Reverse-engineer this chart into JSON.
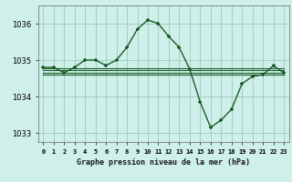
{
  "title": "Graphe pression niveau de la mer (hPa)",
  "background_color": "#cff0ea",
  "grid_color": "#99ccbb",
  "line_color": "#1a5c28",
  "x_labels": [
    "0",
    "1",
    "2",
    "3",
    "4",
    "5",
    "6",
    "7",
    "8",
    "9",
    "10",
    "11",
    "12",
    "13",
    "14",
    "15",
    "16",
    "17",
    "18",
    "19",
    "20",
    "21",
    "22",
    "23"
  ],
  "ylim": [
    1032.75,
    1036.5
  ],
  "yticks": [
    1033,
    1034,
    1035,
    1036
  ],
  "main_series": [
    1034.8,
    1034.8,
    1034.65,
    1034.8,
    1035.0,
    1035.0,
    1034.85,
    1035.0,
    1035.35,
    1035.85,
    1036.1,
    1036.0,
    1035.65,
    1035.35,
    1034.75,
    1033.85,
    1033.15,
    1033.35,
    1033.65,
    1034.35,
    1034.55,
    1034.6,
    1034.85,
    1034.65
  ],
  "flat_line1": 1034.78,
  "flat_line2": 1034.72,
  "flat_line3": 1034.66,
  "flat_line4": 1034.6,
  "ylabel_fontsize": 6,
  "xlabel_fontsize": 6,
  "tick_fontsize": 5
}
